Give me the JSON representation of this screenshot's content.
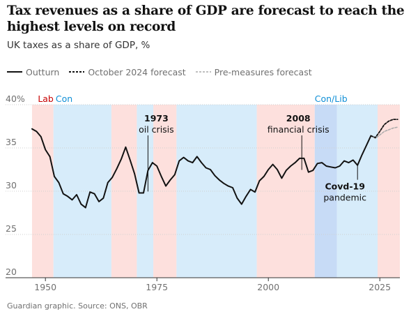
{
  "title": "Tax revenues as a share of GDP are forecast to reach the highest levels on record",
  "subtitle": "UK taxes as a share of GDP, %",
  "source": "Guardian graphic. Source: ONS, OBR",
  "colors": {
    "lab": "#fde0dd",
    "con": "#d7ecfa",
    "conlib": "#c7dbf6",
    "lab_text": "#c70000",
    "con_text": "#0f8fd6",
    "outturn": "#121212",
    "oct_forecast": "#121212",
    "pre_forecast": "#aaaaaa"
  },
  "chart_data": {
    "type": "line",
    "title": "Tax revenues as a share of GDP are forecast to reach the highest levels on record",
    "subtitle": "UK taxes as a share of GDP, %",
    "xlabel": "",
    "ylabel": "",
    "xlim": [
      1947,
      2029.5
    ],
    "ylim": [
      20,
      40
    ],
    "y_ticks": [
      20,
      25,
      30,
      35,
      40
    ],
    "y_tick_labels": [
      "20",
      "25",
      "30",
      "35",
      "40%"
    ],
    "x_ticks": [
      1950,
      1975,
      2000,
      2025
    ],
    "x_tick_labels": [
      "1950",
      "1975",
      "2000",
      "2025"
    ],
    "grid": "horizontal",
    "legend_position": "top-left",
    "legend": [
      {
        "label": "Outturn",
        "style": "solid"
      },
      {
        "label": "October 2024 forecast",
        "style": "dashed"
      },
      {
        "label": "Pre-measures forecast",
        "style": "dashed-grey"
      }
    ],
    "governments": [
      {
        "party": "lab",
        "start": 1947,
        "end": 1951.8
      },
      {
        "party": "con",
        "start": 1951.8,
        "end": 1964.8
      },
      {
        "party": "lab",
        "start": 1964.8,
        "end": 1970.5
      },
      {
        "party": "con",
        "start": 1970.5,
        "end": 1974.2
      },
      {
        "party": "lab",
        "start": 1974.2,
        "end": 1979.4
      },
      {
        "party": "con",
        "start": 1979.4,
        "end": 1997.4
      },
      {
        "party": "lab",
        "start": 1997.4,
        "end": 2010.4
      },
      {
        "party": "conlib",
        "start": 2010.4,
        "end": 2015.4
      },
      {
        "party": "con",
        "start": 2015.4,
        "end": 2024.5
      },
      {
        "party": "lab",
        "start": 2024.5,
        "end": 2029.5
      }
    ],
    "party_labels": [
      {
        "text": "Lab",
        "party": "lab",
        "x": 1948.3
      },
      {
        "text": "Con",
        "party": "con",
        "x": 1952.3
      },
      {
        "text": "Con/Lib",
        "party": "con",
        "x": 2010.4
      }
    ],
    "annotations": [
      {
        "lines": [
          "1973",
          "oil crisis"
        ],
        "x": 1973,
        "y_top": 34.8,
        "y_bottom": 29.8,
        "text_anchor": "middle"
      },
      {
        "lines": [
          "2008",
          "financial crisis"
        ],
        "x": 2007.5,
        "y_top": 32.3,
        "y_bottom": 32.3,
        "text_anchor": "middle"
      },
      {
        "lines": [
          "Covd-19",
          "pandemic"
        ],
        "x": 2020,
        "y_top": 31.0,
        "y_bottom": 33.5,
        "text_anchor": "middle",
        "text_below": true
      }
    ],
    "series": [
      {
        "name": "Outturn",
        "style": "solid",
        "x": [
          1947,
          1948,
          1949,
          1950,
          1951,
          1952,
          1953,
          1954,
          1955,
          1956,
          1957,
          1958,
          1959,
          1960,
          1961,
          1962,
          1963,
          1964,
          1965,
          1966,
          1967,
          1968,
          1969,
          1970,
          1971,
          1972,
          1973,
          1974,
          1975,
          1976,
          1977,
          1978,
          1979,
          1980,
          1981,
          1982,
          1983,
          1984,
          1985,
          1986,
          1987,
          1988,
          1989,
          1990,
          1991,
          1992,
          1993,
          1994,
          1995,
          1996,
          1997,
          1998,
          1999,
          2000,
          2001,
          2002,
          2003,
          2004,
          2005,
          2006,
          2007,
          2008,
          2009,
          2010,
          2011,
          2012,
          2013,
          2014,
          2015,
          2016,
          2017,
          2018,
          2019,
          2020,
          2021,
          2022,
          2023
        ],
        "values": [
          37.2,
          36.9,
          36.3,
          34.8,
          34.0,
          31.7,
          31.0,
          29.7,
          29.4,
          29.0,
          29.6,
          28.5,
          28.1,
          29.9,
          29.7,
          28.8,
          29.2,
          31.0,
          31.6,
          32.6,
          33.7,
          35.1,
          33.6,
          32.0,
          29.8,
          29.8,
          32.4,
          33.3,
          32.9,
          31.7,
          30.6,
          31.3,
          31.9,
          33.5,
          33.9,
          33.5,
          33.3,
          34.0,
          33.3,
          32.7,
          32.5,
          31.8,
          31.3,
          30.9,
          30.6,
          30.4,
          29.2,
          28.5,
          29.4,
          30.2,
          29.9,
          31.2,
          31.7,
          32.5,
          33.1,
          32.5,
          31.5,
          32.4,
          32.9,
          33.3,
          33.8,
          33.8,
          32.2,
          32.4,
          33.2,
          33.3,
          32.9,
          32.8,
          32.7,
          32.9,
          33.5,
          33.3,
          33.6,
          33.0,
          34.2,
          35.3,
          36.4
        ]
      },
      {
        "name": "October 2024 forecast",
        "style": "dashed",
        "x": [
          2023,
          2024,
          2025,
          2026,
          2027,
          2028,
          2029
        ],
        "values": [
          36.4,
          36.2,
          36.9,
          37.7,
          38.1,
          38.3,
          38.3
        ]
      },
      {
        "name": "Pre-measures forecast",
        "style": "dashed-grey",
        "x": [
          2023,
          2024,
          2025,
          2026,
          2027,
          2028,
          2029
        ],
        "values": [
          36.4,
          36.1,
          36.5,
          36.9,
          37.1,
          37.3,
          37.4
        ]
      }
    ]
  }
}
